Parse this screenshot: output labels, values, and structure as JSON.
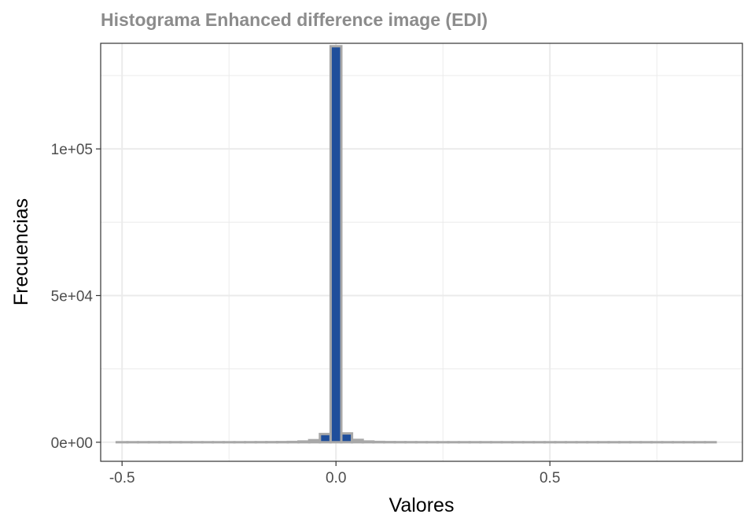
{
  "chart_data": {
    "type": "bar",
    "title": "Histograma Enhanced difference image (EDI)",
    "xlabel": "Valores",
    "ylabel": "Frecuencias",
    "xlim": [
      -0.55,
      0.95
    ],
    "ylim": [
      -6500,
      136000
    ],
    "x_ticks": [
      {
        "value": -0.5,
        "label": "-0.5"
      },
      {
        "value": 0.0,
        "label": "0.0"
      },
      {
        "value": 0.5,
        "label": "0.5"
      }
    ],
    "y_ticks": [
      {
        "value": 0,
        "label": "0e+00"
      },
      {
        "value": 50000,
        "label": "5e+04"
      },
      {
        "value": 100000,
        "label": "1e+05"
      }
    ],
    "bin_width": 0.025,
    "bins": [
      {
        "x": -0.5,
        "count": 0
      },
      {
        "x": -0.475,
        "count": 0
      },
      {
        "x": -0.45,
        "count": 0
      },
      {
        "x": -0.425,
        "count": 0
      },
      {
        "x": -0.4,
        "count": 0
      },
      {
        "x": -0.375,
        "count": 0
      },
      {
        "x": -0.35,
        "count": 0
      },
      {
        "x": -0.325,
        "count": 0
      },
      {
        "x": -0.3,
        "count": 0
      },
      {
        "x": -0.275,
        "count": 0
      },
      {
        "x": -0.25,
        "count": 0
      },
      {
        "x": -0.225,
        "count": 0
      },
      {
        "x": -0.2,
        "count": 10
      },
      {
        "x": -0.175,
        "count": 20
      },
      {
        "x": -0.15,
        "count": 30
      },
      {
        "x": -0.125,
        "count": 50
      },
      {
        "x": -0.1,
        "count": 100
      },
      {
        "x": -0.075,
        "count": 250
      },
      {
        "x": -0.05,
        "count": 700
      },
      {
        "x": -0.025,
        "count": 2800
      },
      {
        "x": 0.0,
        "count": 135000
      },
      {
        "x": 0.025,
        "count": 3000
      },
      {
        "x": 0.05,
        "count": 800
      },
      {
        "x": 0.075,
        "count": 250
      },
      {
        "x": 0.1,
        "count": 100
      },
      {
        "x": 0.125,
        "count": 50
      },
      {
        "x": 0.15,
        "count": 30
      },
      {
        "x": 0.175,
        "count": 20
      },
      {
        "x": 0.2,
        "count": 10
      },
      {
        "x": 0.225,
        "count": 0
      },
      {
        "x": 0.25,
        "count": 0
      },
      {
        "x": 0.275,
        "count": 0
      },
      {
        "x": 0.3,
        "count": 0
      },
      {
        "x": 0.325,
        "count": 0
      },
      {
        "x": 0.35,
        "count": 0
      },
      {
        "x": 0.375,
        "count": 0
      },
      {
        "x": 0.4,
        "count": 0
      },
      {
        "x": 0.425,
        "count": 0
      },
      {
        "x": 0.45,
        "count": 0
      },
      {
        "x": 0.475,
        "count": 0
      },
      {
        "x": 0.5,
        "count": 0
      },
      {
        "x": 0.525,
        "count": 0
      },
      {
        "x": 0.55,
        "count": 0
      },
      {
        "x": 0.575,
        "count": 0
      },
      {
        "x": 0.6,
        "count": 0
      },
      {
        "x": 0.625,
        "count": 0
      },
      {
        "x": 0.65,
        "count": 0
      },
      {
        "x": 0.675,
        "count": 0
      },
      {
        "x": 0.7,
        "count": 0
      },
      {
        "x": 0.725,
        "count": 0
      },
      {
        "x": 0.75,
        "count": 0
      },
      {
        "x": 0.775,
        "count": 0
      },
      {
        "x": 0.8,
        "count": 0
      },
      {
        "x": 0.825,
        "count": 0
      },
      {
        "x": 0.85,
        "count": 0
      },
      {
        "x": 0.875,
        "count": 0
      }
    ],
    "grid": true,
    "colors": {
      "bar_fill": "#1f4e9b",
      "bar_outline": "#a8a8a8",
      "grid": "#ebebeb",
      "panel_border": "#333333",
      "title": "#8c8c8c"
    }
  }
}
